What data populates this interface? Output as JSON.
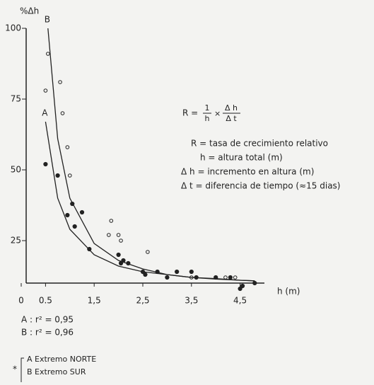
{
  "chart_data": {
    "type": "scatter",
    "y_label": "%Δh",
    "x_label": "h (m)",
    "xlim": [
      0,
      5
    ],
    "ylim": [
      10,
      100
    ],
    "xticks": [
      0,
      0.5,
      {
        "value": 1.5,
        "label": "1,5"
      },
      {
        "value": 2.5,
        "label": "2,5"
      },
      {
        "value": 3.5,
        "label": "3,5"
      },
      {
        "value": 4.5,
        "label": "4,5"
      }
    ],
    "yticks": [
      25,
      50,
      75,
      100
    ],
    "grid": false,
    "series": [
      {
        "name": "A",
        "marker": "filled",
        "color": "#222",
        "x": [
          0.5,
          0.75,
          0.95,
          1.05,
          1.1,
          1.25,
          1.4,
          2.0,
          2.05,
          2.1,
          2.2,
          2.5,
          2.55,
          2.8,
          3.0,
          3.2,
          3.5,
          3.6,
          4.0,
          4.3,
          4.5,
          4.55,
          4.8
        ],
        "values": [
          52,
          48,
          34,
          38,
          30,
          35,
          22,
          20,
          17,
          18,
          17,
          14,
          13,
          14,
          12,
          14,
          14,
          12,
          12,
          12,
          8,
          9,
          10
        ]
      },
      {
        "name": "B",
        "marker": "open",
        "color": "#222",
        "x": [
          0.5,
          0.55,
          0.8,
          0.85,
          0.95,
          1.0,
          1.8,
          1.85,
          2.0,
          2.05,
          2.6,
          2.8,
          3.0,
          3.5,
          4.2,
          4.4
        ],
        "values": [
          78,
          91,
          81,
          70,
          58,
          48,
          27,
          32,
          27,
          25,
          21,
          14,
          12,
          12,
          12,
          12
        ]
      }
    ],
    "curves": [
      {
        "name": "A",
        "x": [
          0.5,
          0.75,
          1,
          1.5,
          2,
          2.5,
          3,
          3.5,
          4,
          4.5,
          4.8
        ],
        "values": [
          67,
          40,
          29,
          20,
          16,
          14,
          13,
          12,
          11.4,
          11,
          10.8
        ]
      },
      {
        "name": "B",
        "x": [
          0.55,
          0.75,
          1,
          1.5,
          2,
          2.5,
          3,
          3.5,
          4,
          4.5,
          4.8
        ],
        "values": [
          100,
          61,
          40,
          24,
          18,
          15,
          13,
          12,
          11.6,
          11,
          10.8
        ]
      }
    ],
    "formula": {
      "lhs": "R =",
      "num1": "1",
      "den1": "h",
      "times": "×",
      "num2": "Δ h",
      "den2": "Δ t"
    },
    "definitions": [
      "R = tasa de crecimiento relativo",
      "h = altura total (m)",
      "Δ h = incremento en altura (m)",
      "Δ t = diferencia de tiempo (≈15 dias)"
    ],
    "r2": [
      "A : r² = 0,95",
      "B : r² = 0,96"
    ],
    "footnote": {
      "mark": "*",
      "items": [
        "A    Extremo NORTE",
        "B    Extremo SUR"
      ]
    }
  }
}
